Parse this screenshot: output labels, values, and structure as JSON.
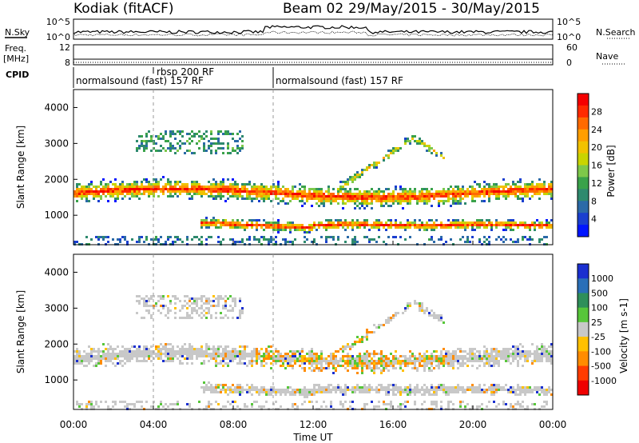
{
  "header": {
    "station": "Kodiak (fitACF)",
    "beam": "Beam 02",
    "dates": "29/May/2015 - 30/May/2015"
  },
  "top_panels": {
    "nsky_label": "N.Sky",
    "nsky_ticks": [
      "10^5",
      "10^0"
    ],
    "nsearch_label": "N.Search",
    "nsearch_ticks": [
      "10^5",
      "10^0"
    ],
    "freq_label": "Freq.",
    "freq_unit": "[MHz]",
    "freq_ticks": [
      "12",
      "8"
    ],
    "nave_label": "Nave",
    "nave_ticks": [
      "60",
      "0"
    ],
    "cpid_label": "CPID"
  },
  "cpid_segments": [
    {
      "label": "normalsound (fast) 157 RF",
      "start_hour": 0,
      "end_hour": 10
    },
    {
      "label": "rbsp 200 RF",
      "start_hour": 4.0,
      "end_hour": 10
    },
    {
      "label": "normalsound (fast) 157 RF",
      "start_hour": 10,
      "end_hour": 24
    }
  ],
  "axes": {
    "ylabel": "Slant Range [km]",
    "xlabel": "Time UT",
    "yticks": [
      "4000",
      "3000",
      "2000",
      "1000"
    ],
    "xticks": [
      "00:00",
      "04:00",
      "08:00",
      "12:00",
      "16:00",
      "20:00",
      "00:00"
    ]
  },
  "power_colorbar": {
    "label": "Power [dB]",
    "ticks": [
      "28",
      "24",
      "20",
      "16",
      "12",
      "8",
      "4"
    ],
    "colors": [
      "#f50000",
      "#ff2a00",
      "#ff6a00",
      "#ff9e00",
      "#f2c200",
      "#c9d400",
      "#7ec84a",
      "#3aa24a",
      "#2e8a6e",
      "#2b6aa8",
      "#1a3fcf",
      "#0015ff"
    ]
  },
  "velocity_colorbar": {
    "label": "Velocity [m s-1]",
    "ticks": [
      "1000",
      "500",
      "100",
      "25",
      "-25",
      "-100",
      "-500",
      "-1000"
    ],
    "colors": [
      "#1a2fd0",
      "#2a6fb8",
      "#2f8f5a",
      "#57c63a",
      "#c8c8c8",
      "#ffc000",
      "#ff8c00",
      "#ff3c00",
      "#f00000"
    ]
  },
  "chart_data": [
    {
      "type": "heatmap",
      "title": "Power",
      "xlabel": "Time UT",
      "ylabel": "Slant Range [km]",
      "xlim": [
        0,
        24
      ],
      "ylim": [
        180,
        4500
      ],
      "colorbar": {
        "label": "Power [dB]",
        "range": [
          0,
          32
        ]
      },
      "features": [
        {
          "name": "upper F-region band",
          "time_range": [
            0,
            24
          ],
          "slant_range_km": [
            1300,
            2000
          ],
          "power_db_peak": 28
        },
        {
          "name": "lower band",
          "time_range": [
            6.5,
            24
          ],
          "slant_range_km": [
            600,
            1000
          ],
          "power_db_peak": 26
        },
        {
          "name": "rising arc",
          "time_range": [
            12,
            18
          ],
          "slant_range_km": [
            1400,
            3200
          ],
          "power_db_peak": 20
        }
      ]
    },
    {
      "type": "heatmap",
      "title": "Velocity",
      "xlabel": "Time UT",
      "ylabel": "Slant Range [km]",
      "xlim": [
        0,
        24
      ],
      "ylim": [
        180,
        4500
      ],
      "colorbar": {
        "label": "Velocity [m s-1]",
        "range": [
          -1000,
          1000
        ]
      },
      "features": [
        {
          "name": "ground scatter band",
          "time_range": [
            0,
            24
          ],
          "slant_range_km": [
            1300,
            1900
          ],
          "velocity_ms": 0
        },
        {
          "name": "negative velocity arc",
          "time_range": [
            12,
            18
          ],
          "slant_range_km": [
            1200,
            2400
          ],
          "velocity_ms": -300
        }
      ]
    }
  ]
}
